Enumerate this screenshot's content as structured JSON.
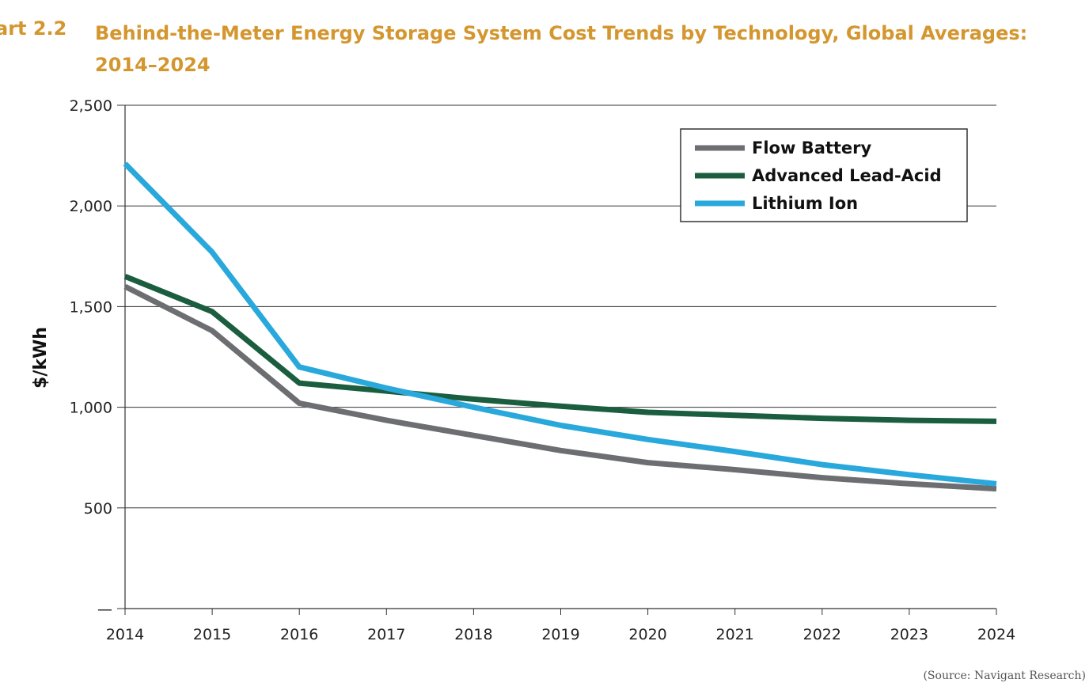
{
  "header": {
    "label": "art 2.2",
    "title": "Behind-the-Meter Energy Storage System Cost Trends by Technology, Global Averages: 2014–2024"
  },
  "source": "(Source: Navigant Research)",
  "chart_data": {
    "type": "line",
    "title": "Behind-the-Meter Energy Storage System Cost Trends by Technology, Global Averages: 2014–2024",
    "xlabel": "",
    "ylabel": "$/kWh",
    "x": [
      "2014",
      "2015",
      "2016",
      "2017",
      "2018",
      "2019",
      "2020",
      "2021",
      "2022",
      "2023",
      "2024"
    ],
    "ylim": [
      0,
      2500
    ],
    "yticks": [
      0,
      500,
      1000,
      1500,
      2000,
      2500
    ],
    "ytick_labels": [
      "—",
      "500",
      "1,000",
      "1,500",
      "2,000",
      "2,500"
    ],
    "grid": true,
    "legend_position": "top-right",
    "series": [
      {
        "name": "Flow Battery",
        "color": "#6d6e71",
        "values": [
          1600,
          1380,
          1020,
          935,
          860,
          785,
          725,
          690,
          650,
          620,
          595
        ]
      },
      {
        "name": "Advanced Lead-Acid",
        "color": "#1b5e3f",
        "values": [
          1650,
          1475,
          1120,
          1080,
          1040,
          1005,
          975,
          960,
          945,
          935,
          930
        ]
      },
      {
        "name": "Lithium Ion",
        "color": "#29a8dc",
        "values": [
          2210,
          1770,
          1200,
          1095,
          1000,
          910,
          840,
          780,
          715,
          665,
          620
        ]
      }
    ]
  }
}
